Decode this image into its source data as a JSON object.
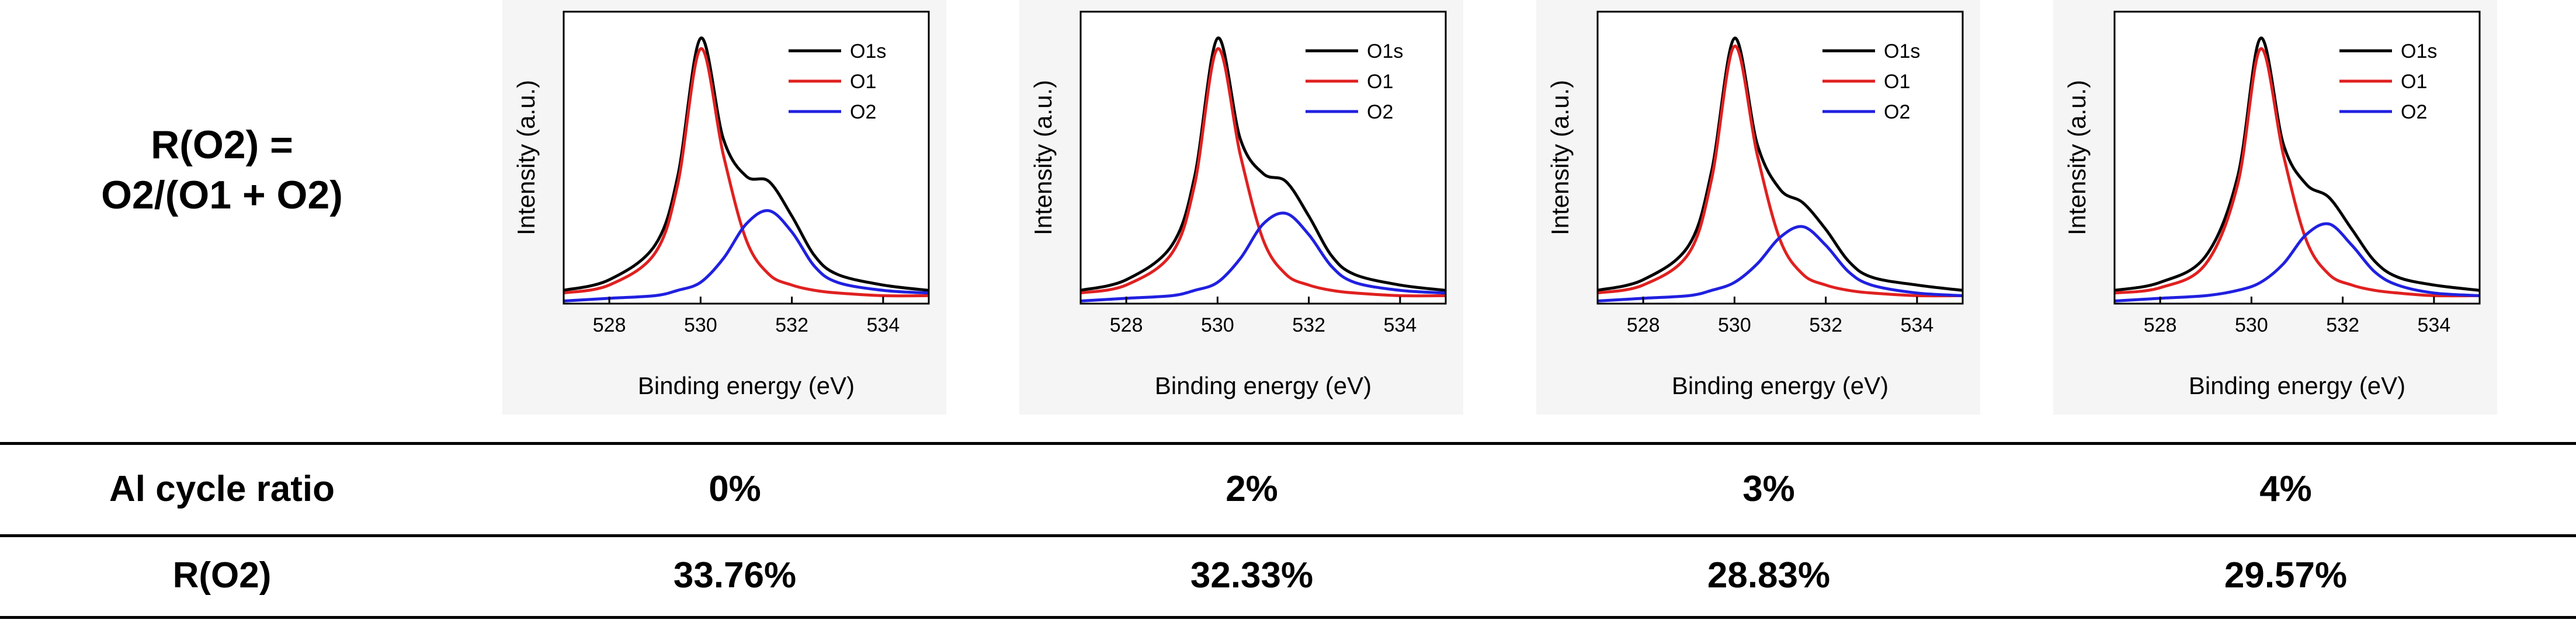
{
  "formula": {
    "line1": "R(O2) =",
    "line2": "O2/(O1 + O2)"
  },
  "chart_data": [
    {
      "type": "line",
      "xlabel": "Binding energy (eV)",
      "ylabel": "Intensity (a.u.)",
      "xlim": [
        527,
        535
      ],
      "ylim": [
        0,
        1.1
      ],
      "xticks": [
        528,
        530,
        532,
        534
      ],
      "legend": "top-right",
      "series": [
        {
          "name": "O1s",
          "color": "#000000",
          "x": [
            527.0,
            528.0,
            529.0,
            529.5,
            530.0,
            530.5,
            531.0,
            531.5,
            532.0,
            532.5,
            533.0,
            534.0,
            535.0
          ],
          "values": [
            0.05,
            0.09,
            0.22,
            0.48,
            1.0,
            0.62,
            0.48,
            0.46,
            0.33,
            0.18,
            0.11,
            0.07,
            0.05
          ]
        },
        {
          "name": "O1",
          "color": "#e02020",
          "x": [
            527.0,
            528.0,
            529.0,
            529.5,
            530.0,
            530.5,
            531.0,
            531.5,
            532.0,
            532.5,
            533.0,
            534.0,
            535.0
          ],
          "values": [
            0.04,
            0.07,
            0.19,
            0.45,
            0.96,
            0.56,
            0.24,
            0.11,
            0.07,
            0.05,
            0.04,
            0.03,
            0.03
          ]
        },
        {
          "name": "O2",
          "color": "#2020e0",
          "x": [
            527.0,
            528.0,
            529.0,
            529.5,
            530.0,
            530.5,
            531.0,
            531.5,
            532.0,
            532.5,
            533.0,
            534.0,
            535.0
          ],
          "values": [
            0.01,
            0.02,
            0.03,
            0.05,
            0.08,
            0.17,
            0.3,
            0.35,
            0.27,
            0.14,
            0.08,
            0.05,
            0.04
          ]
        }
      ]
    },
    {
      "type": "line",
      "xlabel": "Binding energy (eV)",
      "ylabel": "Intensity (a.u.)",
      "xlim": [
        527,
        535
      ],
      "ylim": [
        0,
        1.1
      ],
      "xticks": [
        528,
        530,
        532,
        534
      ],
      "legend": "top-right",
      "series": [
        {
          "name": "O1s",
          "color": "#000000",
          "x": [
            527.0,
            528.0,
            529.0,
            529.5,
            530.0,
            530.5,
            531.0,
            531.5,
            532.0,
            532.5,
            533.0,
            534.0,
            535.0
          ],
          "values": [
            0.05,
            0.09,
            0.22,
            0.48,
            1.0,
            0.62,
            0.49,
            0.46,
            0.33,
            0.18,
            0.11,
            0.07,
            0.05
          ]
        },
        {
          "name": "O1",
          "color": "#e02020",
          "x": [
            527.0,
            528.0,
            529.0,
            529.5,
            530.0,
            530.5,
            531.0,
            531.5,
            532.0,
            532.5,
            533.0,
            534.0,
            535.0
          ],
          "values": [
            0.04,
            0.07,
            0.19,
            0.45,
            0.96,
            0.56,
            0.24,
            0.11,
            0.07,
            0.05,
            0.04,
            0.03,
            0.03
          ]
        },
        {
          "name": "O2",
          "color": "#2020e0",
          "x": [
            527.0,
            528.0,
            529.0,
            529.5,
            530.0,
            530.5,
            531.0,
            531.5,
            532.0,
            532.5,
            533.0,
            534.0,
            535.0
          ],
          "values": [
            0.01,
            0.02,
            0.03,
            0.05,
            0.08,
            0.17,
            0.3,
            0.34,
            0.26,
            0.14,
            0.08,
            0.05,
            0.04
          ]
        }
      ]
    },
    {
      "type": "line",
      "xlabel": "Binding energy (eV)",
      "ylabel": "Intensity (a.u.)",
      "xlim": [
        527,
        535
      ],
      "ylim": [
        0,
        1.1
      ],
      "xticks": [
        528,
        530,
        532,
        534
      ],
      "legend": "top-right",
      "series": [
        {
          "name": "O1s",
          "color": "#000000",
          "x": [
            527.0,
            528.0,
            529.0,
            529.5,
            530.0,
            530.5,
            531.0,
            531.5,
            532.0,
            532.5,
            533.0,
            534.0,
            535.0
          ],
          "values": [
            0.05,
            0.09,
            0.22,
            0.5,
            1.0,
            0.6,
            0.43,
            0.38,
            0.28,
            0.16,
            0.1,
            0.07,
            0.05
          ]
        },
        {
          "name": "O1",
          "color": "#e02020",
          "x": [
            527.0,
            528.0,
            529.0,
            529.5,
            530.0,
            530.5,
            531.0,
            531.5,
            532.0,
            532.5,
            533.0,
            534.0,
            535.0
          ],
          "values": [
            0.04,
            0.07,
            0.19,
            0.47,
            0.97,
            0.56,
            0.24,
            0.11,
            0.07,
            0.05,
            0.04,
            0.03,
            0.03
          ]
        },
        {
          "name": "O2",
          "color": "#2020e0",
          "x": [
            527.0,
            528.0,
            529.0,
            529.5,
            530.0,
            530.5,
            531.0,
            531.5,
            532.0,
            532.5,
            533.0,
            534.0,
            535.0
          ],
          "values": [
            0.01,
            0.02,
            0.03,
            0.05,
            0.08,
            0.15,
            0.25,
            0.29,
            0.22,
            0.12,
            0.07,
            0.04,
            0.03
          ]
        }
      ]
    },
    {
      "type": "line",
      "xlabel": "Binding energy (eV)",
      "ylabel": "Intensity (a.u.)",
      "xlim": [
        527,
        535
      ],
      "ylim": [
        0,
        1.1
      ],
      "xticks": [
        528,
        530,
        532,
        534
      ],
      "legend": "top-right",
      "series": [
        {
          "name": "O1s",
          "color": "#000000",
          "x": [
            527.0,
            528.0,
            529.0,
            529.7,
            530.2,
            530.7,
            531.2,
            531.7,
            532.2,
            532.7,
            533.2,
            534.0,
            535.0
          ],
          "values": [
            0.05,
            0.08,
            0.18,
            0.48,
            1.0,
            0.6,
            0.45,
            0.4,
            0.28,
            0.16,
            0.1,
            0.07,
            0.05
          ]
        },
        {
          "name": "O1",
          "color": "#e02020",
          "x": [
            527.0,
            528.0,
            529.0,
            529.7,
            530.2,
            530.7,
            531.2,
            531.7,
            532.2,
            532.7,
            533.2,
            534.0,
            535.0
          ],
          "values": [
            0.04,
            0.06,
            0.15,
            0.45,
            0.96,
            0.56,
            0.24,
            0.11,
            0.07,
            0.05,
            0.04,
            0.03,
            0.03
          ]
        },
        {
          "name": "O2",
          "color": "#2020e0",
          "x": [
            527.0,
            528.0,
            529.0,
            529.7,
            530.2,
            530.7,
            531.2,
            531.7,
            532.2,
            532.7,
            533.2,
            534.0,
            535.0
          ],
          "values": [
            0.01,
            0.02,
            0.03,
            0.05,
            0.08,
            0.15,
            0.26,
            0.3,
            0.22,
            0.12,
            0.07,
            0.04,
            0.03
          ]
        }
      ]
    }
  ],
  "table": {
    "rows": [
      {
        "label": "Al cycle ratio",
        "values": [
          "0%",
          "2%",
          "3%",
          "4%"
        ]
      },
      {
        "label": "R(O2)",
        "values": [
          "33.76%",
          "32.33%",
          "28.83%",
          "29.57%"
        ]
      }
    ]
  }
}
